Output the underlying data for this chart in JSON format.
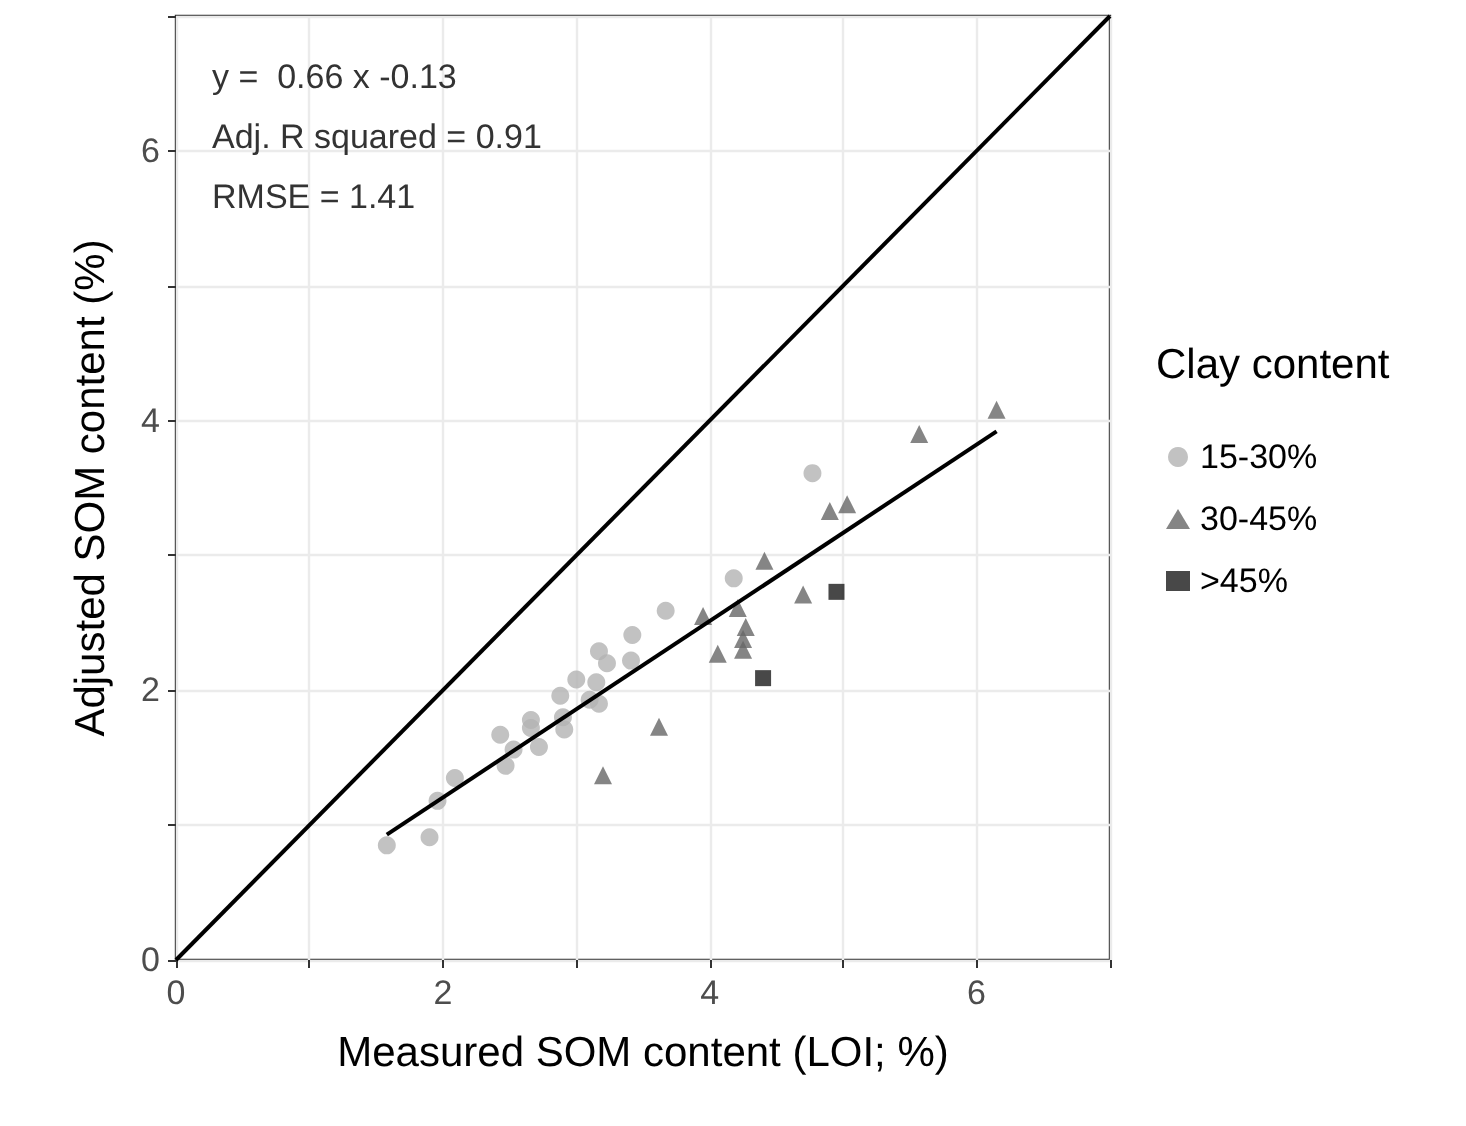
{
  "chart_data": {
    "type": "scatter",
    "xlabel": "Measured SOM content (LOI; %)",
    "ylabel": "Adjusted SOM content (%)",
    "legend_title": "Clay content",
    "annotations": [
      "y =  0.66 x -0.13",
      "Adj. R squared = 0.91",
      "RMSE = 1.41"
    ],
    "xlim": [
      0,
      7
    ],
    "ylim": [
      0,
      7
    ],
    "xticks": [
      0,
      {
        "value": 1,
        "label": null
      },
      2,
      {
        "value": 3,
        "label": null
      },
      4,
      {
        "value": 5,
        "label": null
      },
      6,
      {
        "value": 7,
        "label": null
      }
    ],
    "yticks": [
      0,
      {
        "value": 1,
        "label": null
      },
      2,
      {
        "value": 3,
        "label": null
      },
      4,
      {
        "value": 5,
        "label": null
      },
      6,
      {
        "value": 7,
        "label": null
      }
    ],
    "grid": true,
    "legend": "right",
    "series": [
      {
        "name": "15-30%",
        "color": "#b3b3b3",
        "marker": "circle",
        "x": [
          1.58,
          1.9,
          1.96,
          2.09,
          2.43,
          2.47,
          2.53,
          2.66,
          2.66,
          2.72,
          2.88,
          2.9,
          2.91,
          3.0,
          3.1,
          3.15,
          3.17,
          3.23,
          3.17,
          3.42,
          3.41,
          3.67,
          4.18,
          4.77
        ],
        "values": [
          0.85,
          0.91,
          1.18,
          1.35,
          1.67,
          1.44,
          1.56,
          1.78,
          1.72,
          1.58,
          1.96,
          1.8,
          1.71,
          2.08,
          1.93,
          2.06,
          2.29,
          2.2,
          1.9,
          2.41,
          2.22,
          2.59,
          2.83,
          3.61
        ]
      },
      {
        "name": "30-45%",
        "color": "#666666",
        "marker": "triangle",
        "x": [
          3.2,
          3.62,
          3.95,
          4.06,
          4.21,
          4.25,
          4.25,
          4.27,
          4.41,
          4.7,
          4.9,
          5.03,
          5.57,
          6.15
        ],
        "values": [
          1.37,
          1.73,
          2.55,
          2.27,
          2.61,
          2.3,
          2.38,
          2.47,
          2.96,
          2.71,
          3.33,
          3.38,
          3.9,
          4.08
        ]
      },
      {
        "name": ">45%",
        "color": "#1a1a1a",
        "marker": "square",
        "x": [
          4.4,
          4.95
        ],
        "values": [
          2.09,
          2.73
        ]
      },
      {
        "type": "line",
        "color": "#000000",
        "marker": "none",
        "line_style": "solid",
        "x": [
          1.58,
          6.15
        ],
        "values": [
          0.93,
          3.92
        ]
      },
      {
        "type": "line",
        "color": "#000000",
        "marker": "none",
        "line_style": "solid",
        "x": [
          0,
          7
        ],
        "values": [
          0,
          7
        ]
      }
    ]
  }
}
